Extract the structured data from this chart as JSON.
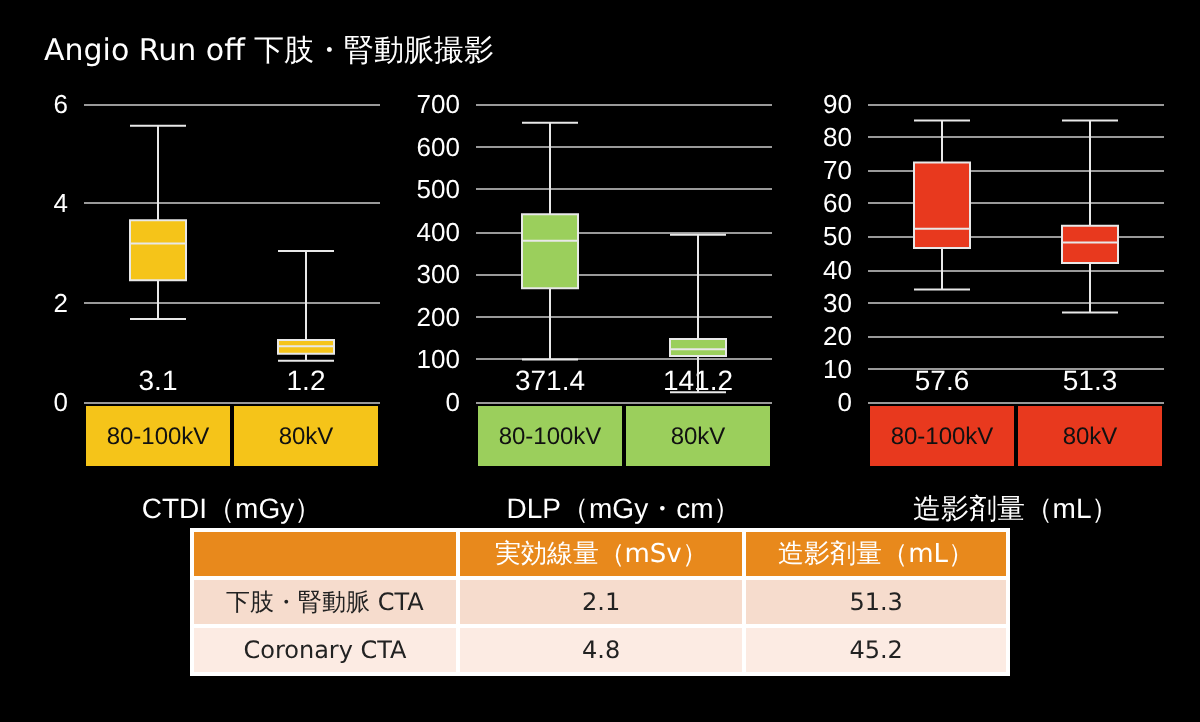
{
  "chart_data": [
    {
      "type": "box",
      "title": "Angio Run off 下肢・腎動脈撮影",
      "xlabel": "CTDI（mGy）",
      "categories": [
        "80-100kV",
        "80kV"
      ],
      "color": "#f5c419",
      "annotations": [
        "3.1",
        "1.2"
      ],
      "boxes": [
        {
          "low": 1.67,
          "q1": 2.45,
          "median": 3.19,
          "q3": 3.66,
          "high": 5.56
        },
        {
          "low": 0.83,
          "q1": 0.97,
          "median": 1.12,
          "q3": 1.25,
          "high": 3.04
        }
      ],
      "ylim": [
        0,
        6
      ],
      "yticks": [
        0,
        2,
        4,
        6
      ],
      "grid": "y"
    },
    {
      "type": "box",
      "xlabel": "DLP（mGy・cm）",
      "categories": [
        "80-100kV",
        "80kV"
      ],
      "color": "#9bcf5c",
      "annotations": [
        "371.4",
        "141.2"
      ],
      "boxes": [
        {
          "low": 100,
          "q1": 267,
          "median": 379,
          "q3": 441,
          "high": 656
        },
        {
          "low": 23,
          "q1": 108,
          "median": 124,
          "q3": 148,
          "high": 393
        }
      ],
      "ylim": [
        0,
        700
      ],
      "yticks": [
        0,
        100,
        200,
        300,
        400,
        500,
        600,
        700
      ],
      "grid": "y"
    },
    {
      "type": "box",
      "xlabel": "造影剤量（mL）",
      "categories": [
        "80-100kV",
        "80kV"
      ],
      "color": "#e8391e",
      "annotations": [
        "57.6",
        "51.3"
      ],
      "boxes": [
        {
          "low": 34,
          "q1": 46.5,
          "median": 52.3,
          "q3": 72.3,
          "high": 85
        },
        {
          "low": 27,
          "q1": 42,
          "median": 48.2,
          "q3": 53.2,
          "high": 85
        }
      ],
      "ylim": [
        0,
        90
      ],
      "yticks": [
        0,
        10,
        20,
        30,
        40,
        50,
        60,
        70,
        80,
        90
      ],
      "grid": "y"
    },
    {
      "type": "other",
      "categories": [
        "下肢・腎動脈 CTA",
        "Coronary CTA"
      ],
      "series": [
        {
          "name": "実効線量（mSv）",
          "colors": [
            "#f6dccd",
            "#fcebe3"
          ],
          "values": [
            2.1,
            4.8
          ]
        },
        {
          "name": "造影剤量（mL）",
          "colors": [
            "#f6dccd",
            "#fcebe3"
          ],
          "values": [
            51.3,
            45.2
          ]
        }
      ],
      "data_labels": true
    }
  ]
}
